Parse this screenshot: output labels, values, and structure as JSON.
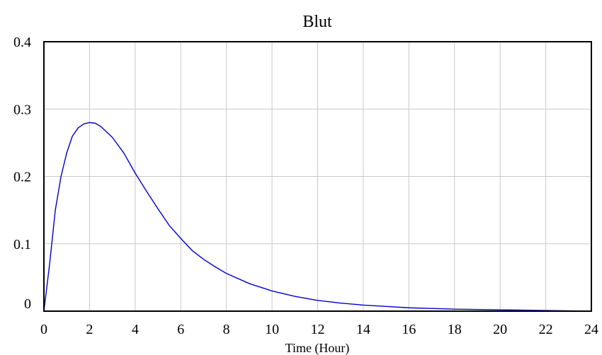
{
  "chart_data": {
    "type": "line",
    "title": "Blut",
    "xlabel": "Time (Hour)",
    "ylabel": "",
    "xlim": [
      0,
      24
    ],
    "ylim": [
      0,
      0.4
    ],
    "x_ticks": [
      0,
      2,
      4,
      6,
      8,
      10,
      12,
      14,
      16,
      18,
      20,
      22,
      24
    ],
    "y_ticks": [
      0,
      0.1,
      0.2,
      0.3,
      0.4
    ],
    "x_tick_labels": [
      "0",
      "2",
      "4",
      "6",
      "8",
      "10",
      "12",
      "14",
      "16",
      "18",
      "20",
      "22",
      "24"
    ],
    "y_tick_labels": [
      "0",
      "0.1",
      "0.2",
      "0.3",
      "0.4"
    ],
    "grid": true,
    "legend": "none",
    "colors": {
      "series": "#0000cc",
      "grid": "#c8c8c8",
      "frame": "#000000"
    },
    "series": [
      {
        "x": [
          0,
          0.25,
          0.5,
          0.75,
          1.0,
          1.25,
          1.5,
          1.75,
          2.0,
          2.25,
          2.5,
          3.0,
          3.5,
          4.0,
          4.5,
          5.0,
          5.5,
          6.0,
          6.5,
          7.0,
          7.5,
          8.0,
          9.0,
          10.0,
          11.0,
          12.0,
          13.0,
          14.0,
          15.0,
          16.0,
          17.0,
          18.0,
          20.0,
          22.0,
          24.0
        ],
        "y": [
          0,
          0.07,
          0.15,
          0.2,
          0.235,
          0.26,
          0.272,
          0.278,
          0.28,
          0.279,
          0.274,
          0.258,
          0.235,
          0.205,
          0.178,
          0.152,
          0.127,
          0.108,
          0.09,
          0.077,
          0.066,
          0.056,
          0.041,
          0.03,
          0.022,
          0.016,
          0.012,
          0.009,
          0.007,
          0.005,
          0.004,
          0.003,
          0.002,
          0.001,
          0.0
        ]
      }
    ]
  }
}
